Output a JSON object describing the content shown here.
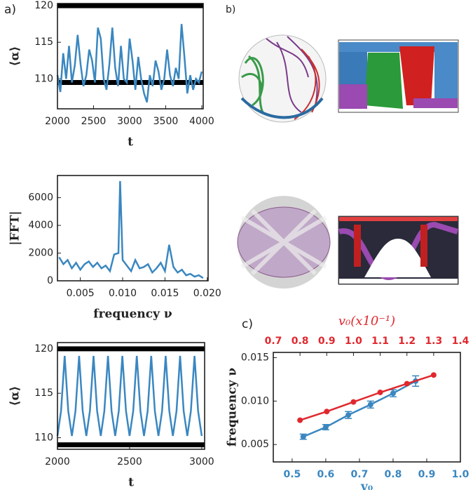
{
  "chart_data": [
    {
      "type": "line",
      "label": "a)",
      "xlabel": "t",
      "ylabel": "⟨α⟩",
      "color": "#3a87c0",
      "x": [
        2000,
        2040,
        2080,
        2120,
        2160,
        2200,
        2240,
        2280,
        2320,
        2360,
        2400,
        2440,
        2480,
        2520,
        2560,
        2600,
        2640,
        2680,
        2720,
        2760,
        2800,
        2840,
        2880,
        2920,
        2960,
        3000,
        3040,
        3080,
        3120,
        3160,
        3200,
        3240,
        3280,
        3320,
        3360,
        3400,
        3440,
        3480,
        3520,
        3560,
        3600,
        3640,
        3680,
        3720,
        3760,
        3800,
        3840,
        3880,
        3920,
        3960,
        4000
      ],
      "values": [
        110.5,
        108.2,
        113.5,
        110.0,
        114.5,
        109.5,
        111.8,
        116.0,
        112.0,
        109.0,
        110.5,
        114.0,
        112.5,
        109.5,
        117.0,
        115.5,
        110.0,
        108.5,
        112.0,
        117.0,
        111.5,
        109.0,
        114.5,
        110.0,
        109.5,
        115.5,
        112.5,
        108.5,
        113.0,
        110.0,
        108.0,
        106.8,
        110.5,
        109.0,
        112.5,
        111.0,
        108.5,
        110.0,
        114.0,
        110.5,
        109.0,
        111.5,
        110.0,
        117.5,
        113.0,
        108.0,
        110.5,
        108.5,
        110.0,
        109.5,
        111.0
      ],
      "hlines": [
        120,
        109.5
      ],
      "xlim": [
        2000,
        4020
      ],
      "ylim": [
        105.9,
        120.3
      ],
      "xticks": [
        2000,
        2500,
        3000,
        3500,
        4000
      ],
      "yticks": [
        110,
        115,
        120
      ]
    },
    {
      "type": "line",
      "xlabel": "frequency ν",
      "ylabel": "|FFT|",
      "color": "#3a87c0",
      "x": [
        0.0025,
        0.003,
        0.0035,
        0.004,
        0.0045,
        0.005,
        0.0055,
        0.006,
        0.0065,
        0.007,
        0.0075,
        0.008,
        0.0085,
        0.009,
        0.0095,
        0.0097,
        0.01,
        0.0105,
        0.011,
        0.0115,
        0.012,
        0.0125,
        0.013,
        0.0135,
        0.014,
        0.0145,
        0.015,
        0.0155,
        0.016,
        0.0165,
        0.017,
        0.0175,
        0.018,
        0.0185,
        0.019,
        0.0195
      ],
      "values": [
        1700,
        1200,
        1500,
        900,
        1300,
        800,
        1200,
        1400,
        1000,
        1300,
        900,
        1100,
        700,
        1900,
        2000,
        7200,
        1500,
        1100,
        700,
        1500,
        900,
        1000,
        1200,
        600,
        900,
        1300,
        700,
        2600,
        1000,
        600,
        800,
        400,
        500,
        300,
        400,
        200
      ],
      "xlim": [
        0.0023,
        0.0201
      ],
      "ylim": [
        0,
        7600
      ],
      "xticks": [
        0.005,
        {
          "value": 0.01,
          "label": "0.010"
        },
        0.015,
        {
          "value": 0.02,
          "label": "0.020"
        }
      ],
      "yticks": [
        0,
        2000,
        4000,
        6000
      ]
    },
    {
      "type": "line",
      "xlabel": "t",
      "ylabel": "⟨α⟩",
      "color": "#3a87c0",
      "x": [
        2000,
        2025,
        2050,
        2075,
        2100,
        2125,
        2150,
        2175,
        2200,
        2225,
        2250,
        2275,
        2300,
        2325,
        2350,
        2375,
        2400,
        2425,
        2450,
        2475,
        2500,
        2525,
        2550,
        2575,
        2600,
        2625,
        2650,
        2675,
        2700,
        2725,
        2750,
        2775,
        2800,
        2825,
        2850,
        2875,
        2900,
        2925,
        2950,
        2975,
        3000
      ],
      "values": [
        110.2,
        113,
        119.2,
        113,
        110.2,
        113,
        119.2,
        113,
        110.2,
        113,
        119.2,
        113,
        110.2,
        113,
        119.2,
        113,
        110.2,
        113,
        119.2,
        113,
        110.2,
        113,
        119.2,
        113,
        110.2,
        113,
        119.2,
        113,
        110.2,
        113,
        119.2,
        113,
        110.2,
        113,
        119.2,
        113,
        110.2,
        113,
        119.2,
        113,
        110.2
      ],
      "hlines": [
        120,
        109.2
      ],
      "xlim": [
        2000,
        3020
      ],
      "ylim": [
        108.7,
        120.7
      ],
      "xticks": [
        2000,
        2500,
        3000
      ],
      "yticks": [
        110,
        115,
        120
      ]
    },
    {
      "type": "scatter",
      "label": "c)",
      "xlabel": "v₀",
      "x2label": "v₀(x10⁻¹)",
      "ylabel": "frequency ν",
      "series": [
        {
          "color": "#3a87c0",
          "x": [
            0.533,
            0.6,
            0.667,
            0.733,
            0.8,
            0.867
          ],
          "values": [
            0.0059,
            0.007,
            0.0084,
            0.0096,
            0.0109,
            0.0123
          ],
          "errors": [
            0.0003,
            0.0003,
            0.0004,
            0.0004,
            0.0004,
            0.0006
          ]
        },
        {
          "color": "#e0282e",
          "axis": "x2",
          "x": [
            0.8,
            0.9,
            1.0,
            1.1,
            1.2,
            1.3
          ],
          "values": [
            0.0078,
            0.0088,
            0.0099,
            0.011,
            0.012,
            0.013
          ]
        }
      ],
      "xlim": [
        0.444,
        1.0
      ],
      "x2lim": [
        0.7,
        1.4
      ],
      "ylim": [
        0.003,
        0.0156
      ],
      "xticks": [
        0.5,
        0.6,
        0.7,
        0.8,
        0.9,
        {
          "value": 1.0,
          "label": "1.0"
        }
      ],
      "x2ticks": [
        0.7,
        0.8,
        0.9,
        {
          "value": 1.0,
          "label": "1.0"
        },
        1.1,
        1.2,
        1.3,
        1.4
      ],
      "yticks": [
        0.005,
        {
          "value": 0.01,
          "label": "0.010"
        },
        0.015
      ]
    }
  ],
  "images": {
    "label": "b)"
  }
}
